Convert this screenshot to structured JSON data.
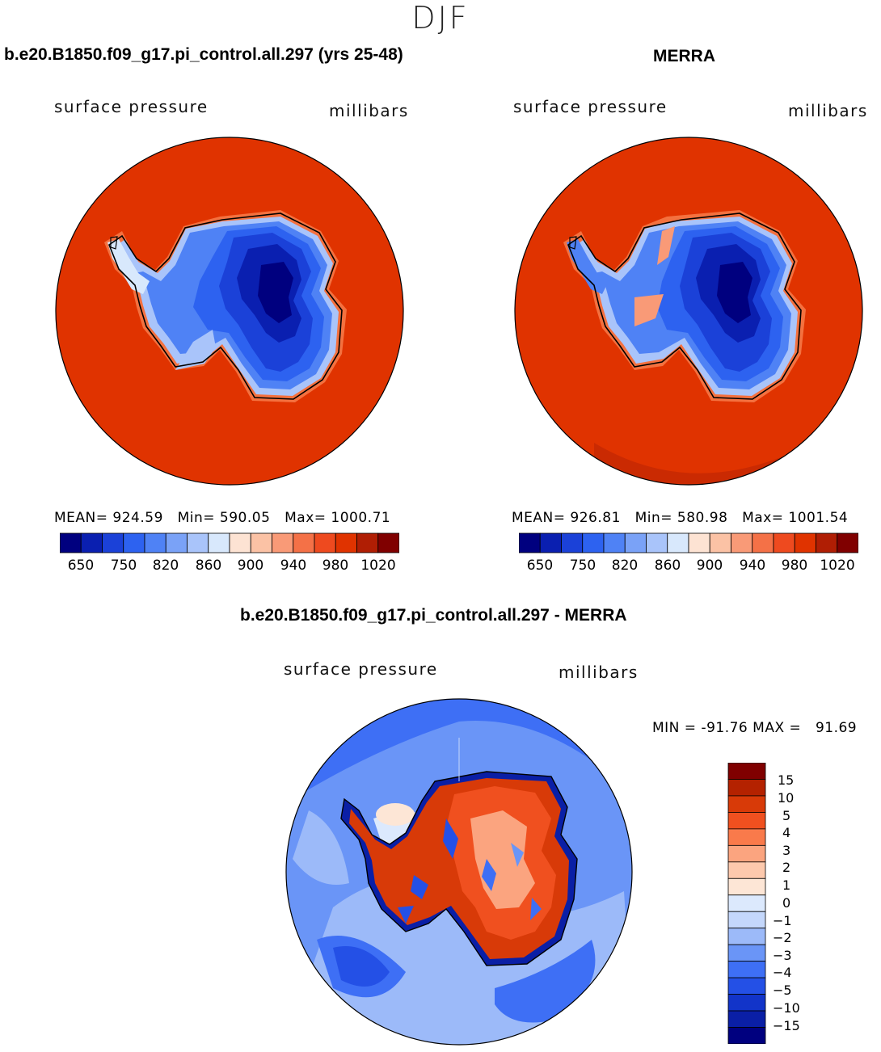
{
  "season": "DJF",
  "panels": [
    {
      "title": "b.e20.B1850.f09_g17.pi_control.all.297 (yrs 25-48)",
      "variable": "surface pressure",
      "units": "millibars",
      "stats": "MEAN= 924.59   Min= 590.05   Max= 1000.71"
    },
    {
      "title": "MERRA",
      "variable": "surface pressure",
      "units": "millibars",
      "stats": "MEAN= 926.81   Min= 580.98   Max= 1001.54"
    }
  ],
  "diff": {
    "title": "b.e20.B1850.f09_g17.pi_control.all.297 - MERRA",
    "variable": "surface pressure",
    "units": "millibars",
    "minmax": "MIN = -91.76 MAX =   91.69"
  },
  "chart_data": [
    {
      "type": "heatmap",
      "title": "b.e20.B1850.f09_g17.pi_control.all.297 (yrs 25-48)",
      "projection": "south polar stereographic",
      "levels": [
        650,
        700,
        750,
        800,
        820,
        840,
        860,
        880,
        900,
        920,
        940,
        960,
        980,
        1000,
        1020
      ],
      "level_labels": [
        "650",
        "750",
        "820",
        "860",
        "900",
        "940",
        "980",
        "1020"
      ],
      "mean": 924.59,
      "min": 590.05,
      "max": 1000.71
    },
    {
      "type": "heatmap",
      "title": "MERRA",
      "projection": "south polar stereographic",
      "levels": [
        650,
        700,
        750,
        800,
        820,
        840,
        860,
        880,
        900,
        920,
        940,
        960,
        980,
        1000,
        1020
      ],
      "level_labels": [
        "650",
        "750",
        "820",
        "860",
        "900",
        "940",
        "980",
        "1020"
      ],
      "mean": 926.81,
      "min": 580.98,
      "max": 1001.54
    },
    {
      "type": "heatmap",
      "title": "b.e20.B1850.f09_g17.pi_control.all.297 - MERRA",
      "projection": "south polar stereographic",
      "levels": [
        -15,
        -10,
        -5,
        -4,
        -3,
        -2,
        -1,
        0,
        1,
        2,
        3,
        4,
        5,
        10,
        15
      ],
      "level_labels": [
        "15",
        "10",
        "5",
        "4",
        "3",
        "2",
        "1",
        "0",
        "−1",
        "−2",
        "−3",
        "−4",
        "−5",
        "−10",
        "−15"
      ],
      "min": -91.76,
      "max": 91.69
    }
  ],
  "colors": {
    "abs_palette": [
      "#00007f",
      "#0a1fb0",
      "#1b41d8",
      "#2d62f0",
      "#4f82f5",
      "#7aa2f7",
      "#a9c4fa",
      "#d8e8fc",
      "#fde3d3",
      "#fbc2a5",
      "#f99a77",
      "#f47147",
      "#ee4a1f",
      "#e03300",
      "#b01e04",
      "#800000"
    ],
    "diff_palette": [
      "#00007f",
      "#0a1fa6",
      "#1234c9",
      "#2450e6",
      "#3e6ff5",
      "#6a95f7",
      "#9cbaf9",
      "#c4d7fb",
      "#dce9fd",
      "#fde6d6",
      "#fdc9ad",
      "#fba47f",
      "#f97a4b",
      "#f0501f",
      "#d83a08",
      "#b42200",
      "#800000"
    ],
    "ocean_abs": "#e03300",
    "ice_mid": "#2d55d8",
    "ice_deep": "#0a1fa6"
  }
}
